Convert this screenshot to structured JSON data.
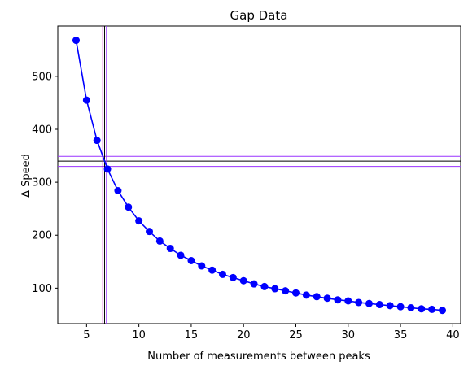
{
  "chart_data": {
    "type": "line",
    "title": "Gap Data",
    "xlabel": "Number of measurements between peaks",
    "ylabel": "Δ Speed",
    "xlim": [
      2.25,
      40.75
    ],
    "ylim": [
      33,
      595
    ],
    "xticks": [
      5,
      10,
      15,
      20,
      25,
      30,
      35,
      40
    ],
    "yticks": [
      100,
      200,
      300,
      400,
      500
    ],
    "grid": false,
    "series": [
      {
        "color": "#0000ff",
        "marker": "circle",
        "x": [
          4,
          5,
          6,
          7,
          8,
          9,
          10,
          11,
          12,
          13,
          14,
          15,
          16,
          17,
          18,
          19,
          20,
          21,
          22,
          23,
          24,
          25,
          26,
          27,
          28,
          29,
          30,
          31,
          32,
          33,
          34,
          35,
          36,
          37,
          38,
          39
        ],
        "y": [
          568,
          455,
          379,
          325,
          284,
          253,
          227,
          207,
          189,
          175,
          162,
          152,
          142,
          134,
          126,
          120,
          114,
          108,
          103,
          99,
          95,
          91,
          87,
          84,
          81,
          78,
          76,
          73,
          71,
          69,
          67,
          65,
          63,
          61,
          60,
          58
        ]
      }
    ],
    "reference_lines": {
      "horizontal": [
        {
          "y": 340,
          "color": "#000000"
        },
        {
          "y": 349,
          "color": "#9933ff"
        },
        {
          "y": 330,
          "color": "#9933ff"
        }
      ],
      "vertical": [
        {
          "x": 6.72,
          "color": "#000000"
        },
        {
          "x": 6.55,
          "color": "#cc00cc"
        },
        {
          "x": 6.9,
          "color": "#9933ff"
        }
      ]
    }
  }
}
